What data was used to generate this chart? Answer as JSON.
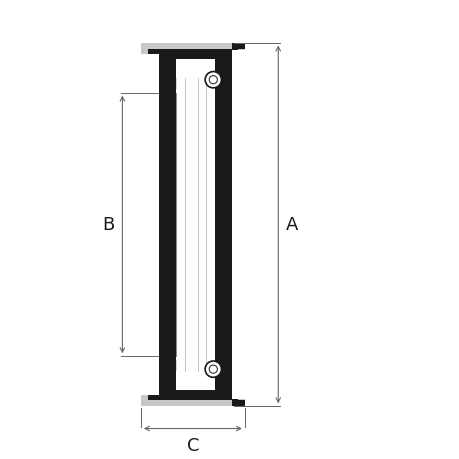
{
  "bg_color": "#ffffff",
  "black": "#1a1a1a",
  "gray": "#c8c8c8",
  "dim_color": "#666666",
  "fig_size": [
    4.6,
    4.6
  ],
  "dpi": 100,
  "font_size": 13,
  "label_A": "A",
  "label_B": "B",
  "label_C": "C",
  "xlim": [
    0,
    10
  ],
  "ylim": [
    0,
    12
  ]
}
